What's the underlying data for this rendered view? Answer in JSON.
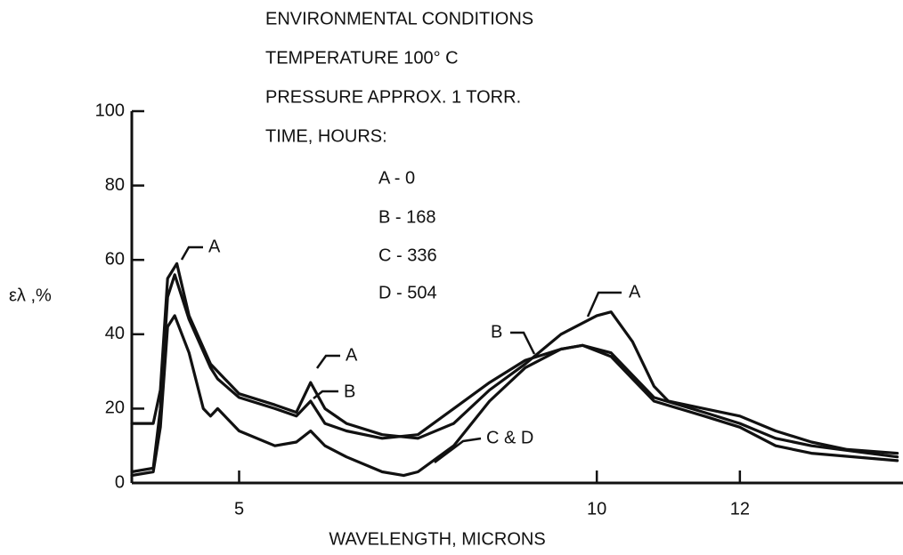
{
  "chart_data": {
    "type": "line",
    "title_lines": [
      "ENVIRONMENTAL CONDITIONS",
      "TEMPERATURE 100° C",
      "PRESSURE APPROX. 1 TORR.",
      "TIME, HOURS:"
    ],
    "legend_items": [
      "A - 0",
      "B - 168",
      "C - 336",
      "D - 504"
    ],
    "curve_labels": [
      "A",
      "A",
      "B",
      "B",
      "A",
      "C & D"
    ],
    "x_label": "WAVELENGTH, MICRONS",
    "y_label": "ελ ,%",
    "xlim": [
      3.5,
      14.28
    ],
    "xticks": [
      5,
      10,
      12
    ],
    "ylim": [
      0,
      100
    ],
    "yticks": [
      0,
      20,
      40,
      60,
      80,
      100
    ],
    "grid": false,
    "series": [
      {
        "name": "A",
        "color": "#111111",
        "x": [
          3.5,
          3.8,
          3.9,
          4.0,
          4.13,
          4.3,
          4.6,
          4.7,
          5.0,
          5.5,
          5.8,
          6.0,
          6.2,
          6.5,
          7.0,
          7.5,
          8.0,
          8.5,
          9.0,
          9.5,
          10.0,
          10.2,
          10.5,
          10.8,
          11.0,
          11.5,
          12.0,
          12.5,
          13.0,
          13.5,
          14.2
        ],
        "values": [
          16,
          16,
          25,
          55,
          59,
          45,
          32,
          30,
          24,
          21,
          19,
          27,
          20,
          16,
          13,
          12,
          16,
          25,
          32,
          40,
          45,
          46,
          38,
          26,
          22,
          20,
          18,
          14,
          11,
          9,
          8
        ]
      },
      {
        "name": "B",
        "color": "#111111",
        "x": [
          3.5,
          3.8,
          3.9,
          4.0,
          4.1,
          4.3,
          4.6,
          4.7,
          5.0,
          5.5,
          5.8,
          6.0,
          6.2,
          6.5,
          7.0,
          7.5,
          8.0,
          8.5,
          9.0,
          9.5,
          9.8,
          10.2,
          10.5,
          10.8,
          11.5,
          12.0,
          12.5,
          13.0,
          14.2
        ],
        "values": [
          3,
          4,
          20,
          50,
          56,
          44,
          31,
          28,
          23,
          20,
          18,
          22,
          16,
          14,
          12,
          13,
          20,
          27,
          33,
          36,
          37,
          35,
          29,
          23,
          19,
          16,
          12,
          10,
          7
        ]
      },
      {
        "name": "C & D",
        "color": "#111111",
        "x": [
          3.5,
          3.8,
          3.9,
          4.0,
          4.1,
          4.3,
          4.5,
          4.6,
          4.7,
          5.0,
          5.5,
          5.8,
          6.0,
          6.2,
          6.5,
          7.0,
          7.3,
          7.5,
          8.0,
          8.5,
          9.0,
          9.5,
          9.8,
          10.2,
          10.5,
          10.8,
          11.5,
          12.0,
          12.5,
          13.0,
          14.2
        ],
        "values": [
          2,
          3,
          15,
          42,
          45,
          35,
          20,
          18,
          20,
          14,
          10,
          11,
          14,
          10,
          7,
          3,
          2,
          3,
          10,
          22,
          31,
          36,
          37,
          34,
          28,
          22,
          18,
          15,
          10,
          8,
          6
        ]
      }
    ]
  }
}
